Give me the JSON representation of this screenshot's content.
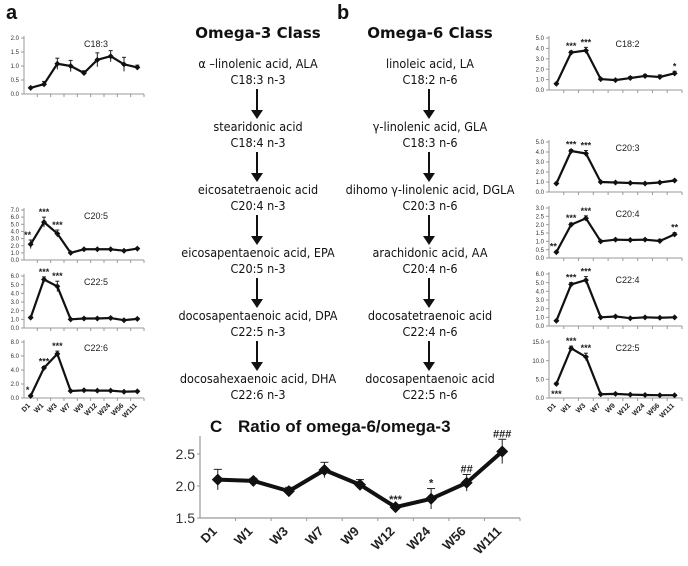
{
  "labels": {
    "panel_a": "a",
    "panel_b": "b",
    "omega3_title": "Omega-3 Class",
    "omega6_title": "Omega-6 Class"
  },
  "omega3_pathway": [
    {
      "name": "α –linolenic acid, ALA",
      "formula": "C18:3 n-3"
    },
    {
      "name": "stearidonic acid",
      "formula": "C18:4 n-3"
    },
    {
      "name": "eicosatetraenoic acid",
      "formula": "C20:4 n-3"
    },
    {
      "name": "eicosapentaenoic acid, EPA",
      "formula": "C20:5 n-3"
    },
    {
      "name": "docosapentaenoic acid, DPA",
      "formula": "C22:5 n-3"
    },
    {
      "name": "docosahexaenoic acid, DHA",
      "formula": "C22:6 n-3"
    }
  ],
  "omega6_pathway": [
    {
      "name": "linoleic acid, LA",
      "formula": "C18:2 n-6"
    },
    {
      "name": "γ-linolenic acid, GLA",
      "formula": "C18:3 n-6"
    },
    {
      "name": "dihomo γ-linolenic acid, DGLA",
      "formula": "C20:3 n-6"
    },
    {
      "name": "arachidonic acid, AA",
      "formula": "C20:4 n-6"
    },
    {
      "name": "docosatetraenoic acid",
      "formula": "C22:4 n-6"
    },
    {
      "name": "docosapentaenoic acid",
      "formula": "C22:5 n-6"
    }
  ],
  "chart_data": [
    {
      "id": "c18_3",
      "type": "line",
      "panel": "a",
      "title": "C18:3",
      "categories": [
        "D1",
        "W1",
        "W3",
        "W7",
        "W9",
        "W12",
        "W24",
        "W56",
        "W111"
      ],
      "values": [
        0.22,
        0.35,
        1.08,
        1.0,
        0.75,
        1.22,
        1.35,
        1.06,
        0.95
      ],
      "errors": [
        0.03,
        0.1,
        0.2,
        0.2,
        0.08,
        0.25,
        0.2,
        0.25,
        0.08
      ],
      "annotations": [
        "",
        "",
        "",
        "",
        "",
        "",
        "",
        "",
        ""
      ],
      "yticks": [
        "0.0",
        "0.5",
        "1.0",
        "1.5",
        "2.0"
      ],
      "ylim": [
        0,
        2.0
      ],
      "show_xlabels": false
    },
    {
      "id": "c20_5",
      "type": "line",
      "panel": "a",
      "title": "C20:5",
      "categories": [
        "D1",
        "W1",
        "W3",
        "W7",
        "W9",
        "W12",
        "W24",
        "W56",
        "W111"
      ],
      "values": [
        2.2,
        5.3,
        3.7,
        1.0,
        1.5,
        1.5,
        1.5,
        1.3,
        1.6
      ],
      "errors": [
        0.6,
        0.7,
        0.5,
        0.1,
        0.1,
        0.1,
        0.1,
        0.1,
        0.1
      ],
      "annotations": [
        "**",
        "***",
        "***",
        "",
        "",
        "",
        "",
        "",
        ""
      ],
      "yticks": [
        "0.0",
        "1.0",
        "2.0",
        "3.0",
        "4.0",
        "5.0",
        "6.0",
        "7.0"
      ],
      "ylim": [
        0,
        7.0
      ],
      "show_xlabels": false
    },
    {
      "id": "c22_5_n3",
      "type": "line",
      "panel": "a",
      "title": "C22:5",
      "categories": [
        "D1",
        "W1",
        "W3",
        "W7",
        "W9",
        "W12",
        "W24",
        "W56",
        "W111"
      ],
      "values": [
        1.2,
        5.6,
        4.8,
        1.0,
        1.1,
        1.1,
        1.15,
        0.9,
        1.05
      ],
      "errors": [
        0.1,
        0.3,
        0.6,
        0.1,
        0.1,
        0.1,
        0.1,
        0.1,
        0.1
      ],
      "annotations": [
        "",
        "***",
        "***",
        "",
        "",
        "",
        "",
        "",
        ""
      ],
      "yticks": [
        "0.0",
        "1.0",
        "2.0",
        "3.0",
        "4.0",
        "5.0",
        "6.0"
      ],
      "ylim": [
        0,
        6.0
      ],
      "show_xlabels": false
    },
    {
      "id": "c22_6",
      "type": "line",
      "panel": "a",
      "title": "C22:6",
      "categories": [
        "D1",
        "W1",
        "W3",
        "W7",
        "W9",
        "W12",
        "W24",
        "W56",
        "W111"
      ],
      "values": [
        0.3,
        4.3,
        6.3,
        1.0,
        1.1,
        1.05,
        1.05,
        0.9,
        0.95
      ],
      "errors": [
        0.1,
        0.2,
        0.4,
        0.1,
        0.1,
        0.1,
        0.1,
        0.1,
        0.1
      ],
      "annotations": [
        "*",
        "***",
        "***",
        "",
        "",
        "",
        "",
        "",
        ""
      ],
      "yticks": [
        "0.0",
        "2.0",
        "4.0",
        "6.0",
        "8.0"
      ],
      "ylim": [
        0,
        8.0
      ],
      "show_xlabels": true
    },
    {
      "id": "c18_2",
      "type": "line",
      "panel": "b",
      "title": "C18:2",
      "categories": [
        "D1",
        "W1",
        "W3",
        "W7",
        "W9",
        "W12",
        "W24",
        "W56",
        "W111"
      ],
      "values": [
        0.6,
        3.6,
        3.8,
        1.05,
        0.95,
        1.15,
        1.35,
        1.25,
        1.6
      ],
      "errors": [
        0.05,
        0.15,
        0.3,
        0.1,
        0.1,
        0.15,
        0.15,
        0.2,
        0.2
      ],
      "annotations": [
        "",
        "***",
        "***",
        "",
        "",
        "",
        "",
        "",
        "*"
      ],
      "yticks": [
        "0.0",
        "1.0",
        "2.0",
        "3.0",
        "4.0",
        "5.0"
      ],
      "ylim": [
        0,
        5.0
      ],
      "show_xlabels": false
    },
    {
      "id": "c20_3",
      "type": "line",
      "panel": "b",
      "title": "C20:3",
      "categories": [
        "D1",
        "W1",
        "W3",
        "W7",
        "W9",
        "W12",
        "W24",
        "W56",
        "W111"
      ],
      "values": [
        0.85,
        4.1,
        3.85,
        1.0,
        0.95,
        0.9,
        0.85,
        0.95,
        1.15
      ],
      "errors": [
        0.05,
        0.15,
        0.3,
        0.05,
        0.05,
        0.05,
        0.05,
        0.1,
        0.1
      ],
      "annotations": [
        "",
        "***",
        "***",
        "",
        "",
        "",
        "",
        "",
        ""
      ],
      "yticks": [
        "0.0",
        "1.0",
        "2.0",
        "3.0",
        "4.0",
        "5.0"
      ],
      "ylim": [
        0,
        5.0
      ],
      "show_xlabels": false
    },
    {
      "id": "c20_4",
      "type": "line",
      "panel": "b",
      "title": "C20:4",
      "categories": [
        "D1",
        "W1",
        "W3",
        "W7",
        "W9",
        "W12",
        "W24",
        "W56",
        "W111"
      ],
      "values": [
        0.35,
        2.0,
        2.38,
        1.0,
        1.1,
        1.08,
        1.1,
        1.02,
        1.42
      ],
      "errors": [
        0.05,
        0.1,
        0.15,
        0.05,
        0.05,
        0.05,
        0.05,
        0.1,
        0.1
      ],
      "annotations": [
        "**",
        "***",
        "***",
        "",
        "",
        "",
        "",
        "",
        "**"
      ],
      "yticks": [
        "0.0",
        "0.5",
        "1.0",
        "1.5",
        "2.0",
        "2.5",
        "3.0"
      ],
      "ylim": [
        0,
        3.0
      ],
      "show_xlabels": false
    },
    {
      "id": "c22_4",
      "type": "line",
      "panel": "b",
      "title": "C22:4",
      "categories": [
        "D1",
        "W1",
        "W3",
        "W7",
        "W9",
        "W12",
        "W24",
        "W56",
        "W111"
      ],
      "values": [
        0.6,
        4.8,
        5.3,
        1.0,
        1.1,
        0.9,
        1.0,
        0.95,
        1.0
      ],
      "errors": [
        0.05,
        0.2,
        0.4,
        0.05,
        0.1,
        0.05,
        0.05,
        0.05,
        0.05
      ],
      "annotations": [
        "",
        "***",
        "***",
        "",
        "",
        "",
        "",
        "",
        ""
      ],
      "yticks": [
        "0.0",
        "1.0",
        "2.0",
        "3.0",
        "4.0",
        "5.0",
        "6.0"
      ],
      "ylim": [
        0,
        6.0
      ],
      "show_xlabels": false
    },
    {
      "id": "c22_5_n6",
      "type": "line",
      "panel": "b",
      "title": "C22:5",
      "categories": [
        "D1",
        "W1",
        "W3",
        "W7",
        "W9",
        "W12",
        "W24",
        "W56",
        "W111"
      ],
      "values": [
        3.8,
        13.3,
        11.0,
        1.0,
        1.1,
        0.9,
        0.8,
        0.75,
        0.75
      ],
      "errors": [
        0.3,
        0.6,
        1.0,
        0.1,
        0.1,
        0.1,
        0.1,
        0.1,
        0.1
      ],
      "annotations": [
        "***",
        "***",
        "***",
        "",
        "",
        "",
        "",
        "",
        ""
      ],
      "annotation_below_first": true,
      "yticks": [
        "0.0",
        "5.0",
        "10.0",
        "15.0"
      ],
      "ylim": [
        0,
        15.0
      ],
      "show_xlabels": true
    },
    {
      "id": "ratio",
      "type": "line",
      "panel": "C",
      "panel_letter": "C",
      "title": "Ratio of omega-6/omega-3",
      "categories": [
        "D1",
        "W1",
        "W3",
        "W7",
        "W9",
        "W12",
        "W24",
        "W56",
        "W111"
      ],
      "values": [
        2.1,
        2.08,
        1.92,
        2.25,
        2.02,
        1.67,
        1.8,
        2.05,
        2.54
      ],
      "errors": [
        0.16,
        0.04,
        0.06,
        0.12,
        0.08,
        0.03,
        0.16,
        0.13,
        0.19
      ],
      "annotations": [
        "",
        "",
        "",
        "",
        "",
        "***",
        "*",
        "##",
        "###"
      ],
      "yticks": [
        "1.5",
        "2.0",
        "2.5"
      ],
      "ylim": [
        1.5,
        2.75
      ],
      "show_xlabels": true
    }
  ]
}
